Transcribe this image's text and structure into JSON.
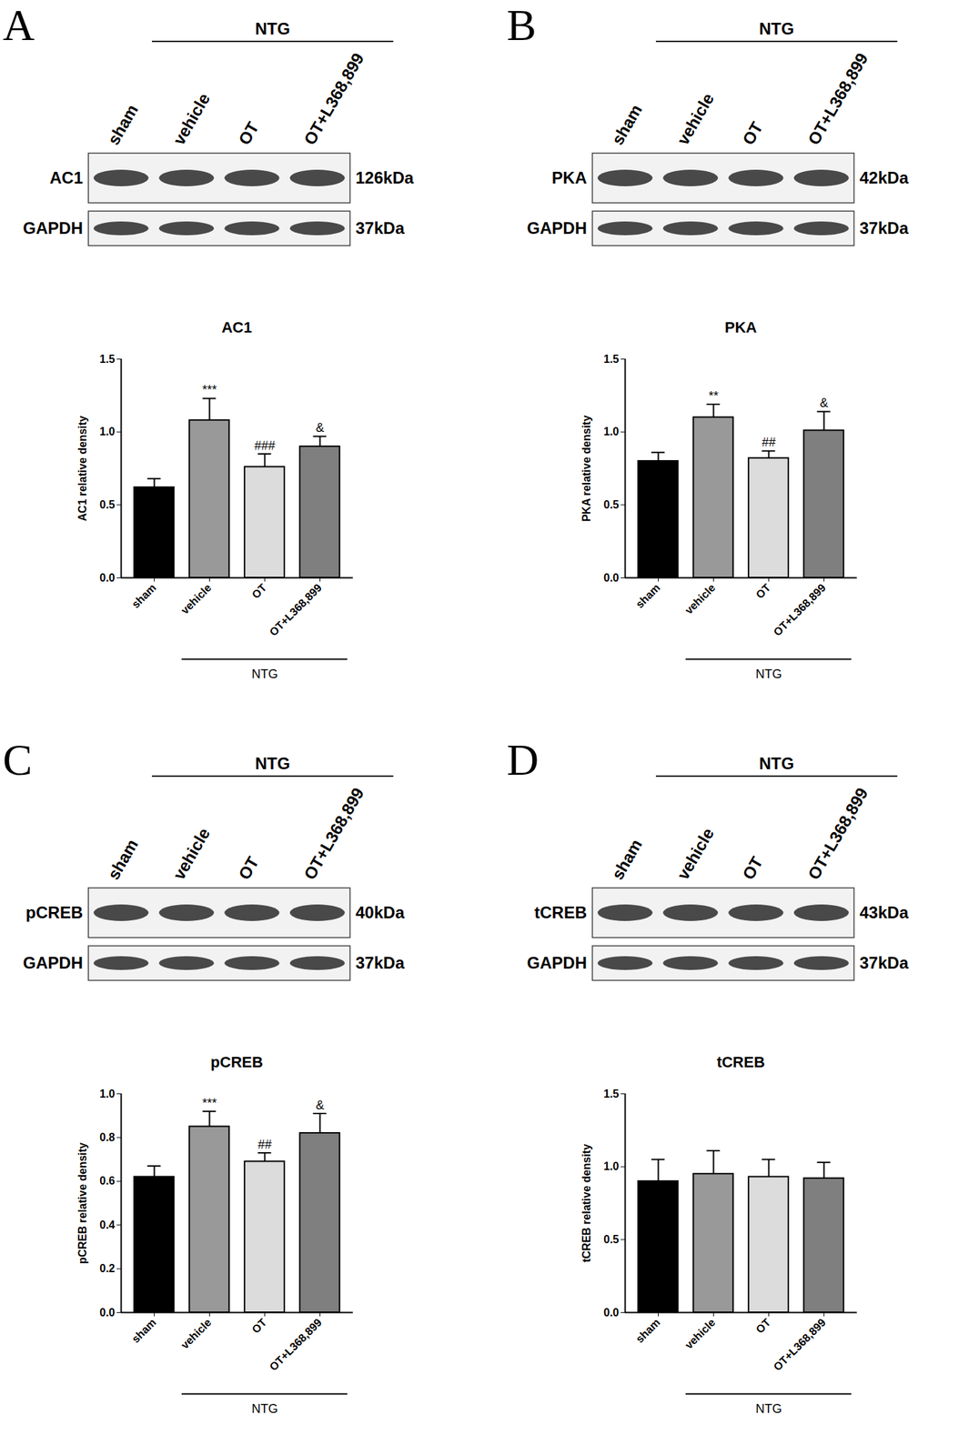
{
  "chart_data": [
    {
      "panel": "A",
      "type": "bar",
      "title": "AC1",
      "y_label": "AC1 relative density",
      "categories": [
        "sham",
        "vehicle",
        "OT",
        "OT+L368,899"
      ],
      "values": [
        0.62,
        1.08,
        0.76,
        0.9
      ],
      "errors": [
        0.06,
        0.15,
        0.09,
        0.07
      ],
      "annotations": [
        {
          "category": "vehicle",
          "text": "***"
        },
        {
          "category": "OT",
          "text": "###"
        },
        {
          "category": "OT+L368,899",
          "text": "&"
        }
      ],
      "colors": [
        "#000000",
        "#999999",
        "#dcdcdc",
        "#7f7f7f"
      ],
      "ylim": [
        0,
        1.5
      ],
      "yticks": [
        {
          "value": 0,
          "label": "0.0"
        },
        0.5,
        {
          "value": 1,
          "label": "1.0"
        },
        1.5
      ],
      "x_group": {
        "label": "NTG",
        "categories": [
          "vehicle",
          "OT",
          "OT+L368,899"
        ]
      },
      "blot": {
        "group_label": "NTG",
        "rows": [
          {
            "label": "AC1",
            "size": "126kDa"
          },
          {
            "label": "GAPDH",
            "size": "37kDa"
          }
        ]
      }
    },
    {
      "panel": "B",
      "type": "bar",
      "title": "PKA",
      "y_label": "PKA relative density",
      "categories": [
        "sham",
        "vehicle",
        "OT",
        "OT+L368,899"
      ],
      "values": [
        0.8,
        1.1,
        0.82,
        1.01
      ],
      "errors": [
        0.06,
        0.09,
        0.05,
        0.13
      ],
      "annotations": [
        {
          "category": "vehicle",
          "text": "**"
        },
        {
          "category": "OT",
          "text": "##"
        },
        {
          "category": "OT+L368,899",
          "text": "&"
        }
      ],
      "colors": [
        "#000000",
        "#999999",
        "#dcdcdc",
        "#7f7f7f"
      ],
      "ylim": [
        0,
        1.5
      ],
      "yticks": [
        {
          "value": 0,
          "label": "0.0"
        },
        0.5,
        {
          "value": 1,
          "label": "1.0"
        },
        1.5
      ],
      "x_group": {
        "label": "NTG",
        "categories": [
          "vehicle",
          "OT",
          "OT+L368,899"
        ]
      },
      "blot": {
        "group_label": "NTG",
        "rows": [
          {
            "label": "PKA",
            "size": "42kDa"
          },
          {
            "label": "GAPDH",
            "size": "37kDa"
          }
        ]
      }
    },
    {
      "panel": "C",
      "type": "bar",
      "title": "pCREB",
      "y_label": "pCREB relative density",
      "categories": [
        "sham",
        "vehicle",
        "OT",
        "OT+L368,899"
      ],
      "values": [
        0.62,
        0.85,
        0.69,
        0.82
      ],
      "errors": [
        0.05,
        0.07,
        0.04,
        0.09
      ],
      "annotations": [
        {
          "category": "vehicle",
          "text": "***"
        },
        {
          "category": "OT",
          "text": "##"
        },
        {
          "category": "OT+L368,899",
          "text": "&"
        }
      ],
      "colors": [
        "#000000",
        "#999999",
        "#dcdcdc",
        "#7f7f7f"
      ],
      "ylim": [
        0,
        1.0
      ],
      "yticks": [
        {
          "value": 0,
          "label": "0.0"
        },
        0.2,
        0.4,
        0.6,
        0.8,
        {
          "value": 1,
          "label": "1.0"
        }
      ],
      "x_group": {
        "label": "NTG",
        "categories": [
          "vehicle",
          "OT",
          "OT+L368,899"
        ]
      },
      "blot": {
        "group_label": "NTG",
        "rows": [
          {
            "label": "pCREB",
            "size": "40kDa"
          },
          {
            "label": "GAPDH",
            "size": "37kDa"
          }
        ]
      }
    },
    {
      "panel": "D",
      "type": "bar",
      "title": "tCREB",
      "y_label": "tCREB relative density",
      "categories": [
        "sham",
        "vehicle",
        "OT",
        "OT+L368,899"
      ],
      "values": [
        0.9,
        0.95,
        0.93,
        0.92
      ],
      "errors": [
        0.15,
        0.16,
        0.12,
        0.11
      ],
      "annotations": [],
      "colors": [
        "#000000",
        "#999999",
        "#dcdcdc",
        "#7f7f7f"
      ],
      "ylim": [
        0,
        1.5
      ],
      "yticks": [
        {
          "value": 0,
          "label": "0.0"
        },
        0.5,
        {
          "value": 1,
          "label": "1.0"
        },
        1.5
      ],
      "x_group": {
        "label": "NTG",
        "categories": [
          "vehicle",
          "OT",
          "OT+L368,899"
        ]
      },
      "blot": {
        "group_label": "NTG",
        "rows": [
          {
            "label": "tCREB",
            "size": "43kDa"
          },
          {
            "label": "GAPDH",
            "size": "37kDa"
          }
        ]
      }
    }
  ]
}
